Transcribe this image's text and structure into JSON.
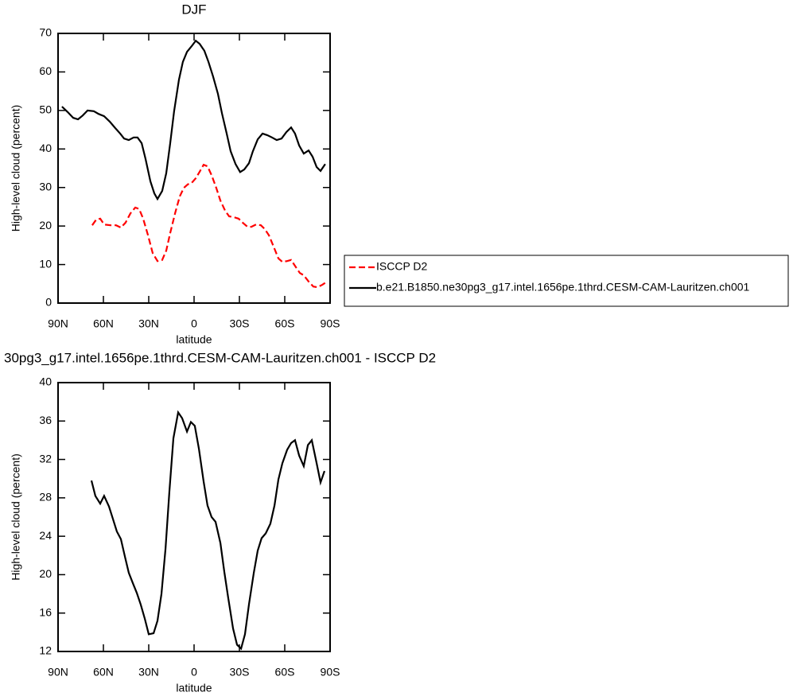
{
  "chart_data": [
    {
      "type": "line",
      "title": "DJF",
      "xlabel": "latitude",
      "ylabel": "High-level cloud (percent)",
      "xlim": [
        90,
        -90
      ],
      "xticks": [
        {
          "value": 90,
          "label": "90N"
        },
        {
          "value": 60,
          "label": "60N"
        },
        {
          "value": 30,
          "label": "30N"
        },
        0,
        {
          "value": -30,
          "label": "30S"
        },
        {
          "value": -60,
          "label": "60S"
        },
        {
          "value": -90,
          "label": "90S"
        }
      ],
      "ylim": [
        0,
        70
      ],
      "yticks": [
        0,
        10,
        20,
        30,
        40,
        50,
        60,
        70
      ],
      "legend": "right",
      "series": [
        {
          "name": "ISCCP D2",
          "color": "#ff0000",
          "linestyle": "dashed",
          "x": [
            67.4,
            64.7,
            62.1,
            59.5,
            55.3,
            51.6,
            48.4,
            45.3,
            42.1,
            38.9,
            36.3,
            33.7,
            30.5,
            27.4,
            24.2,
            21.1,
            18.4,
            15.8,
            12.6,
            9.5,
            6.8,
            4.2,
            1.6,
            -1.1,
            -3.7,
            -6.3,
            -8.9,
            -11.6,
            -14.7,
            -17.4,
            -20.5,
            -23.2,
            -26.3,
            -29.5,
            -32.1,
            -35.3,
            -37.9,
            -41.1,
            -44.2,
            -46.8,
            -49.5,
            -52.6,
            -55.8,
            -58.4,
            -61.6,
            -64.2,
            -67.4,
            -70,
            -72.6,
            -75.8,
            -78.9,
            -81.6,
            -84.7,
            -87.4
          ],
          "values": [
            20.2,
            21.7,
            21.9,
            20.4,
            20.2,
            20.2,
            19.6,
            20.9,
            23.3,
            24.8,
            24.4,
            21.9,
            17.6,
            13,
            10.9,
            11.2,
            13.6,
            18.2,
            23.3,
            27.7,
            29.9,
            30.8,
            31.2,
            32.4,
            34.1,
            35.9,
            35.5,
            33.2,
            29.9,
            26.6,
            24,
            22.5,
            22.3,
            21.9,
            20.9,
            19.8,
            19.8,
            20.4,
            20.2,
            19.2,
            17.6,
            14.7,
            11.6,
            10.7,
            10.9,
            11.2,
            9.3,
            7.8,
            7.2,
            5.6,
            4.3,
            4.1,
            4.7,
            5.4
          ]
        },
        {
          "name": "b.e21.B1850.ne30pg3_g17.intel.1656pe.1thrd.CESM-CAM-Lauritzen.ch001",
          "color": "#000000",
          "linestyle": "solid",
          "x": [
            87.4,
            83.7,
            80,
            76.8,
            73.7,
            70.5,
            66.3,
            63.2,
            59.5,
            55.8,
            52.1,
            48.9,
            46.3,
            43.2,
            40,
            37.4,
            34.7,
            32.1,
            28.9,
            26.3,
            24.2,
            21.1,
            18.4,
            15.8,
            13.2,
            10,
            7.4,
            4.7,
            1.6,
            -1.1,
            -3.7,
            -6.8,
            -9.5,
            -12.6,
            -15.8,
            -18.4,
            -21.6,
            -24.2,
            -27.4,
            -30.5,
            -33.2,
            -36.3,
            -38.9,
            -42.1,
            -45.3,
            -48.4,
            -51.6,
            -54.7,
            -57.9,
            -61.1,
            -64.2,
            -66.8,
            -69.5,
            -72.6,
            -75.8,
            -78.4,
            -81.1,
            -83.7,
            -86.8
          ],
          "values": [
            51,
            49.6,
            48.1,
            47.7,
            48.7,
            50,
            49.8,
            49.1,
            48.5,
            47.1,
            45.4,
            44,
            42.7,
            42.3,
            43,
            43,
            41.5,
            37.4,
            31.6,
            28.5,
            27,
            29.1,
            33.7,
            41.5,
            49.8,
            58,
            62.6,
            65.2,
            66.7,
            68.1,
            67.3,
            65.5,
            62.6,
            58.8,
            54.3,
            49.3,
            44,
            39.4,
            36.1,
            34,
            34.7,
            36.3,
            39.4,
            42.5,
            44,
            43.6,
            43,
            42.3,
            42.7,
            44.4,
            45.6,
            44,
            40.9,
            38.8,
            39.6,
            38,
            35.3,
            34.3,
            36.1
          ]
        }
      ]
    },
    {
      "type": "line",
      "title": "30pg3_g17.intel.1656pe.1thrd.CESM-CAM-Lauritzen.ch001 - ISCCP D2",
      "xlabel": "latitude",
      "ylabel": "High-level cloud (percent)",
      "xlim": [
        90,
        -90
      ],
      "xticks": [
        {
          "value": 90,
          "label": "90N"
        },
        {
          "value": 60,
          "label": "60N"
        },
        {
          "value": 30,
          "label": "30N"
        },
        0,
        {
          "value": -30,
          "label": "30S"
        },
        {
          "value": -60,
          "label": "60S"
        },
        {
          "value": -90,
          "label": "90S"
        }
      ],
      "ylim": [
        12,
        40
      ],
      "yticks": [
        12,
        16,
        20,
        24,
        28,
        32,
        36,
        40
      ],
      "series": [
        {
          "color": "#000000",
          "linestyle": "solid",
          "x": [
            67.9,
            65.3,
            62.1,
            59.5,
            56.3,
            53.7,
            51.1,
            48.4,
            45.8,
            43.2,
            40.5,
            37.9,
            35.3,
            32.6,
            30,
            26.8,
            24.2,
            21.6,
            18.9,
            16.3,
            13.7,
            10.5,
            7.9,
            4.7,
            2.1,
            -0.5,
            -3.2,
            -6.3,
            -8.9,
            -11.6,
            -14.2,
            -17.4,
            -20,
            -22.6,
            -25.8,
            -28.4,
            -31.1,
            -33.7,
            -36.3,
            -39.5,
            -42.1,
            -44.7,
            -47.4,
            -50.5,
            -53.2,
            -55.8,
            -58.4,
            -61.6,
            -64.2,
            -66.8,
            -69.5,
            -72.6,
            -75.3,
            -77.9,
            -81.1,
            -83.7,
            -86.3
          ],
          "values": [
            29.8,
            28.2,
            27.4,
            28.2,
            27.1,
            25.8,
            24.5,
            23.7,
            21.9,
            20.2,
            19.1,
            18.1,
            16.9,
            15.4,
            13.8,
            13.9,
            15.2,
            18,
            22.7,
            28.7,
            34.2,
            36.9,
            36.3,
            34.9,
            35.9,
            35.5,
            33.1,
            29.7,
            27.2,
            26,
            25.5,
            23.3,
            20.3,
            17.6,
            14.4,
            12.7,
            12.3,
            13.8,
            16.9,
            20.2,
            22.5,
            23.8,
            24.3,
            25.3,
            27.2,
            29.9,
            31.6,
            33,
            33.7,
            34,
            32.4,
            31.3,
            33.5,
            34,
            31.6,
            29.6,
            30.8
          ]
        }
      ]
    }
  ]
}
